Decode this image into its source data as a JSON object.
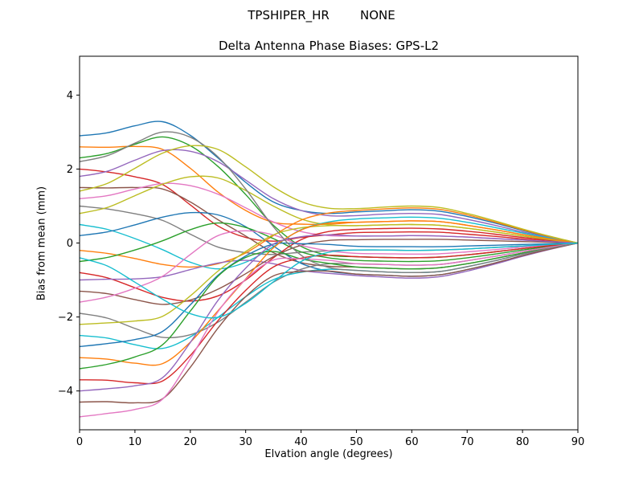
{
  "chart_data": {
    "type": "line",
    "suptitle": "TPSHIPER_HR        NONE",
    "title": "Delta Antenna Phase Biases: GPS-L2",
    "xlabel": "Elvation angle (degrees)",
    "ylabel": "Bias from mean (mm)",
    "xlim": [
      0,
      90
    ],
    "ylim": [
      -5.05,
      5.05
    ],
    "xticks": [
      0,
      10,
      20,
      30,
      40,
      50,
      60,
      70,
      80,
      90
    ],
    "yticks": [
      -4,
      -2,
      0,
      2,
      4
    ],
    "grid": false,
    "legend": "none",
    "background": "#ffffff",
    "axes_color": "#000000",
    "palette": [
      "#1f77b4",
      "#ff7f0e",
      "#2ca02c",
      "#d62728",
      "#9467bd",
      "#8c564b",
      "#e377c2",
      "#7f7f7f",
      "#bcbd22",
      "#17becf"
    ],
    "x": [
      0,
      5,
      10,
      15,
      20,
      25,
      30,
      35,
      40,
      45,
      50,
      55,
      60,
      65,
      70,
      75,
      80,
      85,
      90
    ],
    "series": [
      [
        2.9,
        2.98,
        3.17,
        3.28,
        2.91,
        2.3,
        1.64,
        1.11,
        0.88,
        0.8,
        0.84,
        0.87,
        0.9,
        0.86,
        0.72,
        0.54,
        0.34,
        0.16,
        0
      ],
      [
        2.6,
        2.59,
        2.61,
        2.53,
        2.02,
        1.38,
        0.88,
        0.56,
        0.51,
        0.51,
        0.56,
        0.58,
        0.6,
        0.58,
        0.48,
        0.36,
        0.23,
        0.11,
        0
      ],
      [
        2.3,
        2.42,
        2.67,
        2.87,
        2.63,
        2.07,
        1.31,
        0.48,
        -0.09,
        -0.33,
        -0.37,
        -0.39,
        -0.4,
        -0.38,
        -0.32,
        -0.24,
        -0.15,
        -0.07,
        0
      ],
      [
        2.0,
        1.92,
        1.79,
        1.58,
        1.03,
        0.46,
        0.15,
        0.05,
        0.15,
        0.22,
        0.28,
        0.29,
        0.3,
        0.29,
        0.24,
        0.18,
        0.11,
        0.05,
        0
      ],
      [
        1.8,
        1.94,
        2.24,
        2.5,
        2.48,
        2.2,
        1.7,
        1.2,
        0.88,
        0.74,
        0.74,
        0.78,
        0.8,
        0.77,
        0.64,
        0.48,
        0.3,
        0.14,
        0
      ],
      [
        1.5,
        1.49,
        1.5,
        1.46,
        1.11,
        0.63,
        0.19,
        -0.26,
        -0.53,
        -0.63,
        -0.65,
        -0.68,
        -0.7,
        -0.67,
        -0.56,
        -0.42,
        -0.27,
        -0.13,
        0
      ],
      [
        1.2,
        1.28,
        1.46,
        1.61,
        1.55,
        1.32,
        0.95,
        0.57,
        0.31,
        0.2,
        0.19,
        0.19,
        0.2,
        0.19,
        0.16,
        0.12,
        0.08,
        0.04,
        0
      ],
      [
        1.0,
        0.92,
        0.79,
        0.61,
        0.24,
        -0.11,
        -0.26,
        -0.31,
        -0.25,
        -0.21,
        -0.19,
        -0.19,
        -0.2,
        -0.19,
        -0.16,
        -0.12,
        -0.08,
        -0.04,
        0
      ],
      [
        0.8,
        0.96,
        1.28,
        1.59,
        1.79,
        1.76,
        1.42,
        1.0,
        0.65,
        0.49,
        0.47,
        0.49,
        0.5,
        0.48,
        0.4,
        0.3,
        0.19,
        0.09,
        0
      ],
      [
        0.5,
        0.37,
        0.12,
        -0.18,
        -0.52,
        -0.7,
        -0.52,
        -0.1,
        0.36,
        0.57,
        0.65,
        0.68,
        0.7,
        0.67,
        0.56,
        0.42,
        0.27,
        0.13,
        0
      ],
      [
        0.2,
        0.3,
        0.49,
        0.7,
        0.82,
        0.76,
        0.44,
        -0.08,
        -0.55,
        -0.76,
        -0.84,
        -0.87,
        -0.9,
        -0.86,
        -0.72,
        -0.54,
        -0.34,
        -0.16,
        0
      ],
      [
        -0.2,
        -0.28,
        -0.42,
        -0.58,
        -0.65,
        -0.56,
        -0.27,
        0.2,
        0.62,
        0.81,
        0.88,
        0.92,
        0.95,
        0.91,
        0.76,
        0.57,
        0.36,
        0.17,
        0
      ],
      [
        -0.5,
        -0.39,
        -0.19,
        0.06,
        0.36,
        0.54,
        0.42,
        0.12,
        -0.24,
        -0.4,
        -0.47,
        -0.49,
        -0.5,
        -0.48,
        -0.4,
        -0.3,
        -0.19,
        -0.09,
        0
      ],
      [
        -0.8,
        -0.94,
        -1.21,
        -1.47,
        -1.57,
        -1.43,
        -1.0,
        -0.4,
        0.09,
        0.31,
        0.37,
        0.39,
        0.4,
        0.38,
        0.32,
        0.24,
        0.15,
        0.07,
        0
      ],
      [
        -1.0,
        -0.98,
        -0.97,
        -0.91,
        -0.72,
        -0.54,
        -0.47,
        -0.56,
        -0.74,
        -0.82,
        -0.88,
        -0.92,
        -0.95,
        -0.91,
        -0.76,
        -0.57,
        -0.36,
        -0.17,
        0
      ],
      [
        -1.3,
        -1.37,
        -1.53,
        -1.66,
        -1.54,
        -1.25,
        -0.83,
        -0.37,
        -0.06,
        0.07,
        0.09,
        0.1,
        0.1,
        0.1,
        0.08,
        0.06,
        0.04,
        0.02,
        0
      ],
      [
        -1.6,
        -1.46,
        -1.22,
        -0.9,
        -0.31,
        0.2,
        0.33,
        0.22,
        -0.06,
        -0.21,
        -0.28,
        -0.29,
        -0.3,
        -0.29,
        -0.24,
        -0.18,
        -0.11,
        -0.05,
        0
      ],
      [
        -1.9,
        -2.03,
        -2.31,
        -2.55,
        -2.48,
        -2.14,
        -1.6,
        -1.06,
        -0.71,
        -0.56,
        -0.56,
        -0.58,
        -0.6,
        -0.58,
        -0.48,
        -0.36,
        -0.23,
        -0.11,
        0
      ],
      [
        -2.2,
        -2.16,
        -2.11,
        -1.98,
        -1.43,
        -0.76,
        -0.23,
        0.22,
        0.41,
        0.47,
        0.47,
        0.49,
        0.5,
        0.48,
        0.4,
        0.3,
        0.19,
        0.09,
        0
      ],
      [
        -2.5,
        -2.57,
        -2.75,
        -2.85,
        -2.54,
        -2.01,
        -1.45,
        -0.99,
        -0.79,
        -0.71,
        -0.74,
        -0.78,
        -0.8,
        -0.77,
        -0.64,
        -0.48,
        -0.3,
        -0.14,
        0
      ],
      [
        -2.8,
        -2.72,
        -2.61,
        -2.39,
        -1.67,
        -0.87,
        -0.35,
        -0.03,
        -0.02,
        -0.04,
        -0.09,
        -0.1,
        -0.1,
        -0.1,
        -0.08,
        -0.06,
        -0.04,
        -0.02,
        0
      ],
      [
        -3.1,
        -3.14,
        -3.25,
        -3.26,
        -2.68,
        -1.83,
        -0.97,
        -0.13,
        0.35,
        0.54,
        0.56,
        0.58,
        0.6,
        0.58,
        0.48,
        0.36,
        0.23,
        0.11,
        0
      ],
      [
        -3.4,
        -3.28,
        -3.08,
        -2.75,
        -1.84,
        -0.9,
        -0.39,
        -0.23,
        -0.43,
        -0.55,
        -0.65,
        -0.68,
        -0.7,
        -0.67,
        -0.56,
        -0.42,
        -0.27,
        -0.13,
        0
      ],
      [
        -3.7,
        -3.71,
        -3.78,
        -3.73,
        -3.04,
        -2.1,
        -1.28,
        -0.65,
        -0.41,
        -0.33,
        -0.37,
        -0.39,
        -0.4,
        -0.38,
        -0.32,
        -0.24,
        -0.15,
        -0.07,
        0
      ],
      [
        -4.0,
        -3.94,
        -3.86,
        -3.64,
        -2.69,
        -1.55,
        -0.68,
        -0.03,
        0.17,
        0.22,
        0.19,
        0.19,
        0.2,
        0.19,
        0.16,
        0.12,
        0.08,
        0.04,
        0
      ],
      [
        -4.3,
        -4.29,
        -4.32,
        -4.21,
        -3.36,
        -2.3,
        -1.45,
        -0.89,
        -0.77,
        -0.76,
        -0.84,
        -0.87,
        -0.9,
        -0.86,
        -0.72,
        -0.54,
        -0.34,
        -0.16,
        0
      ],
      [
        -4.7,
        -4.61,
        -4.5,
        -4.22,
        -3.13,
        -1.86,
        -0.98,
        -0.46,
        -0.43,
        -0.47,
        -0.56,
        -0.58,
        -0.6,
        -0.58,
        -0.48,
        -0.36,
        -0.23,
        -0.11,
        0
      ],
      [
        2.2,
        2.36,
        2.7,
        3.0,
        2.86,
        2.33,
        1.46,
        0.44,
        -0.33,
        -0.66,
        -0.74,
        -0.78,
        -0.8,
        -0.77,
        -0.64,
        -0.48,
        -0.3,
        -0.14,
        0
      ],
      [
        1.4,
        1.61,
        2.02,
        2.43,
        2.63,
        2.53,
        2.06,
        1.52,
        1.12,
        0.94,
        0.93,
        0.97,
        1.0,
        0.96,
        0.8,
        0.6,
        0.38,
        0.18,
        0
      ],
      [
        -0.4,
        -0.62,
        -1.06,
        -1.52,
        -1.91,
        -2.01,
        -1.63,
        -1.05,
        -0.5,
        -0.25,
        -0.19,
        -0.19,
        -0.2,
        -0.19,
        -0.16,
        -0.12,
        -0.08,
        -0.04,
        0
      ]
    ]
  }
}
